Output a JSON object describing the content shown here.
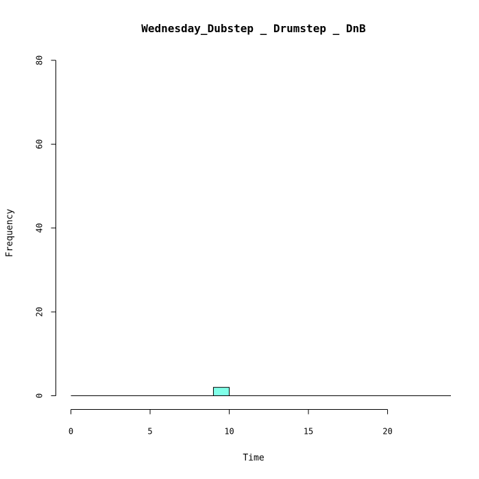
{
  "chart_data": {
    "type": "bar",
    "title": "Wednesday_Dubstep _ Drumstep _ DnB",
    "xlabel": "Time",
    "ylabel": "Frequency",
    "xlim": [
      0,
      24
    ],
    "ylim": [
      0,
      80
    ],
    "x_ticks": [
      0,
      5,
      10,
      15,
      20
    ],
    "y_ticks": [
      0,
      20,
      40,
      60,
      80
    ],
    "bins": [
      {
        "start": 9,
        "end": 10,
        "count": 2
      }
    ],
    "bar_color": "#80FFE8",
    "grid": false
  }
}
